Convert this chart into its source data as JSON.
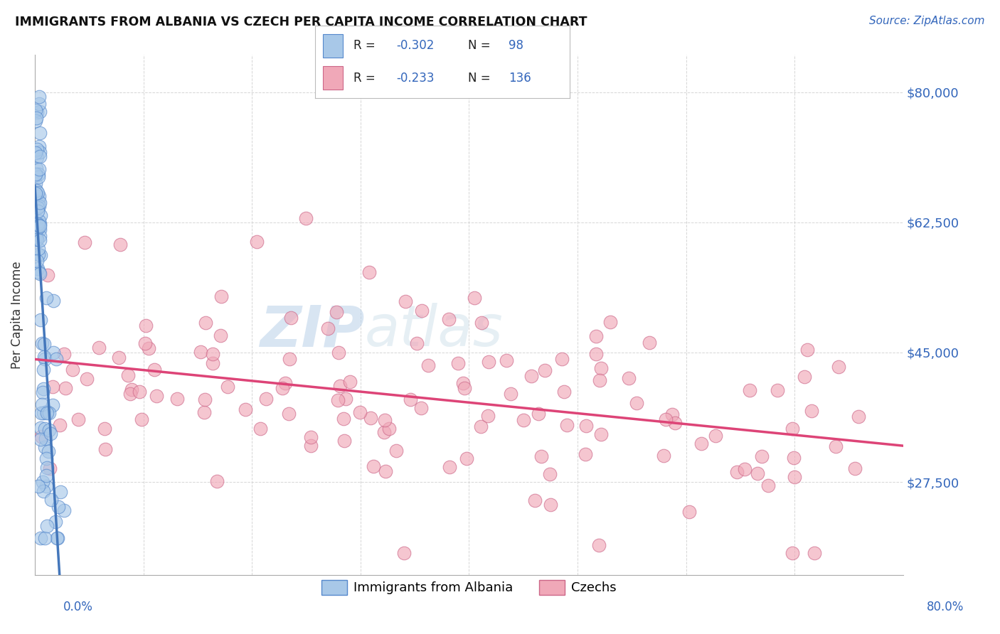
{
  "title": "IMMIGRANTS FROM ALBANIA VS CZECH PER CAPITA INCOME CORRELATION CHART",
  "source": "Source: ZipAtlas.com",
  "ylabel": "Per Capita Income",
  "ytick_labels": [
    "$27,500",
    "$45,000",
    "$62,500",
    "$80,000"
  ],
  "ytick_values": [
    27500,
    45000,
    62500,
    80000
  ],
  "ymin": 15000,
  "ymax": 85000,
  "xmin": 0.0,
  "xmax": 0.8,
  "legend1_R": "-0.302",
  "legend1_N": "98",
  "legend2_R": "-0.233",
  "legend2_N": "136",
  "color_blue_fill": "#a8c8e8",
  "color_blue_edge": "#5588cc",
  "color_pink_fill": "#f0a8b8",
  "color_pink_edge": "#cc6688",
  "color_blue_line": "#4477bb",
  "color_pink_line": "#dd4477",
  "watermark_zip": "ZIP",
  "watermark_atlas": "atlas",
  "legend_label_blue": "Immigrants from Albania",
  "legend_label_pink": "Czechs"
}
